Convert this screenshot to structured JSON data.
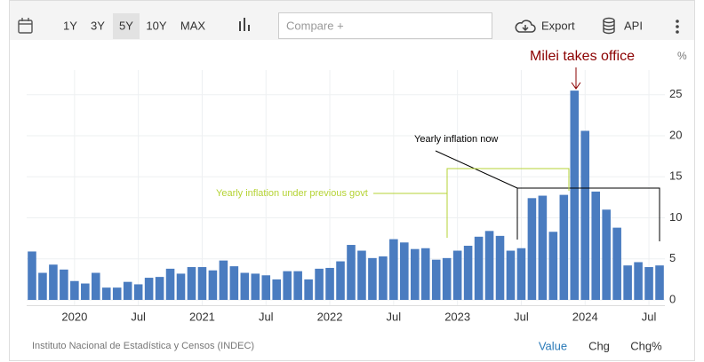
{
  "toolbar": {
    "ranges": [
      "1Y",
      "3Y",
      "5Y",
      "10Y",
      "MAX"
    ],
    "compare": "Compare +",
    "export": "Export",
    "api": "API"
  },
  "chart_data": {
    "type": "bar",
    "unit": "%",
    "annotations": {
      "event": "Milei takes office",
      "now": "Yearly inflation now",
      "previous": "Yearly inflation under previous  govt"
    },
    "categories": [
      null,
      null,
      null,
      null,
      "2020",
      null,
      null,
      null,
      null,
      null,
      "Jul",
      null,
      null,
      null,
      null,
      null,
      "2021",
      null,
      null,
      null,
      null,
      null,
      "Jul",
      null,
      null,
      null,
      null,
      null,
      "2022",
      null,
      null,
      null,
      null,
      null,
      "Jul",
      null,
      null,
      null,
      null,
      null,
      "2023",
      null,
      null,
      null,
      null,
      null,
      "Jul",
      null,
      null,
      null,
      null,
      null,
      "2024",
      null,
      null,
      null,
      null,
      null,
      "Jul",
      null
    ],
    "values": [
      5.9,
      3.3,
      4.3,
      3.7,
      2.3,
      2.0,
      3.3,
      1.5,
      1.5,
      2.2,
      1.9,
      2.7,
      2.8,
      3.8,
      3.2,
      4.0,
      4.0,
      3.6,
      4.8,
      4.1,
      3.3,
      3.2,
      3.0,
      2.5,
      3.5,
      3.5,
      2.5,
      3.8,
      3.9,
      4.7,
      6.7,
      6.0,
      5.1,
      5.3,
      7.4,
      7.0,
      6.2,
      6.3,
      4.9,
      5.1,
      6.0,
      6.6,
      7.7,
      8.4,
      7.8,
      6.0,
      6.3,
      12.4,
      12.7,
      8.3,
      12.8,
      25.5,
      20.6,
      13.2,
      11.0,
      8.8,
      4.2,
      4.6,
      4.0,
      4.2
    ],
    "color": "#4a7cc0",
    "ylim": [
      -0.7,
      28
    ],
    "yticks": [
      0,
      5,
      10,
      15,
      20,
      25
    ],
    "grid": true
  },
  "footer": {
    "source": "Instituto Nacional de Estadística y Censos (INDEC)",
    "modes": [
      "Value",
      "Chg",
      "Chg%"
    ]
  }
}
